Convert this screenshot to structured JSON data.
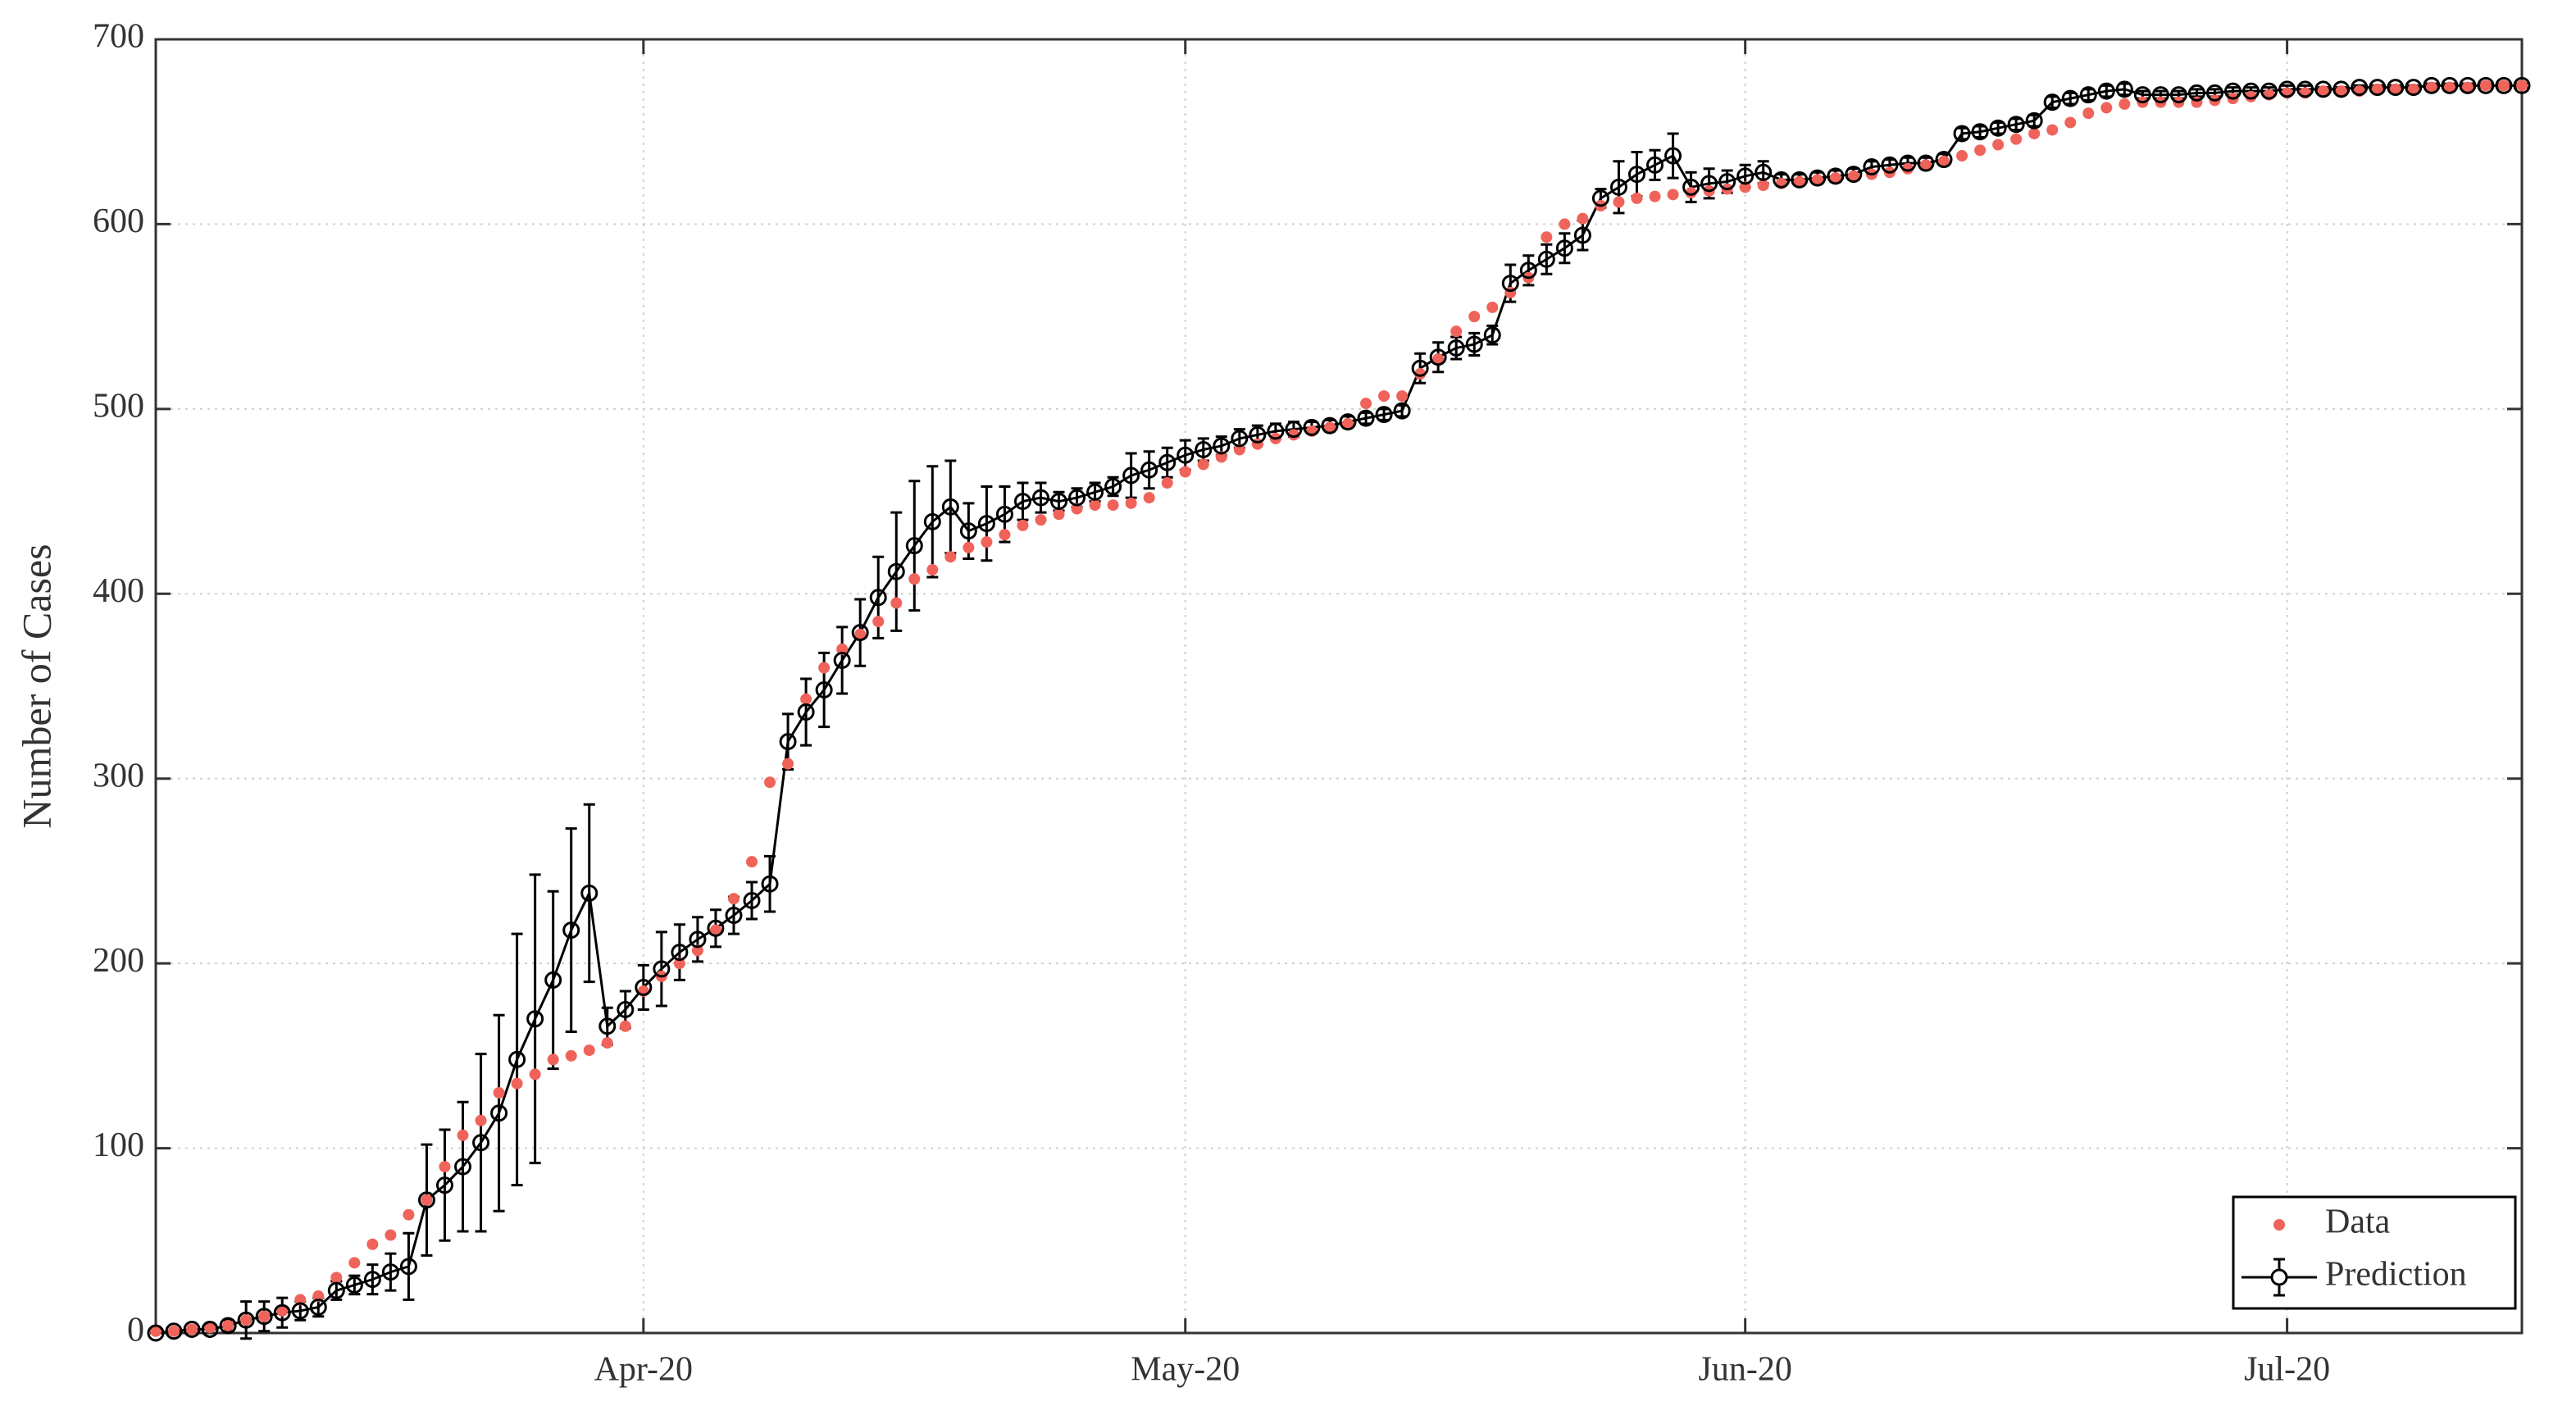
{
  "chart_data": {
    "type": "line",
    "y_label": "Number of Cases",
    "x": [
      0,
      1,
      2,
      3,
      4,
      5,
      6,
      7,
      8,
      9,
      10,
      11,
      12,
      13,
      14,
      15,
      16,
      17,
      18,
      19,
      20,
      21,
      22,
      23,
      24,
      25,
      26,
      27,
      28,
      29,
      30,
      31,
      32,
      33,
      34,
      35,
      36,
      37,
      38,
      39,
      40,
      41,
      42,
      43,
      44,
      45,
      46,
      47,
      48,
      49,
      50,
      51,
      52,
      53,
      54,
      55,
      56,
      57,
      58,
      59,
      60,
      61,
      62,
      63,
      64,
      65,
      66,
      67,
      68,
      69,
      70,
      71,
      72,
      73,
      74,
      75,
      76,
      77,
      78,
      79,
      80,
      81,
      82,
      83,
      84,
      85,
      86,
      87,
      88,
      89,
      90,
      91,
      92,
      93,
      94,
      95,
      96,
      97,
      98,
      99,
      100,
      101,
      102,
      103,
      104,
      105,
      106,
      107,
      108,
      109,
      110,
      111,
      112,
      113,
      114,
      115,
      116,
      117,
      118,
      119,
      120,
      121,
      122,
      123,
      124,
      125,
      126,
      127,
      128,
      129,
      130,
      131
    ],
    "xlim": [
      0,
      131
    ],
    "xticks": [
      {
        "value": 27,
        "label": "Apr-20"
      },
      {
        "value": 57,
        "label": "May-20"
      },
      {
        "value": 88,
        "label": "Jun-20"
      },
      {
        "value": 118,
        "label": "Jul-20"
      }
    ],
    "ylim": [
      0,
      700
    ],
    "yticks": [
      0,
      100,
      200,
      300,
      400,
      500,
      600,
      700
    ],
    "grid": true,
    "legend": "lower right",
    "series": [
      {
        "name": "Data",
        "color": "#f0635a",
        "marker": "dot",
        "values": [
          1,
          1,
          2,
          3,
          4,
          7,
          9,
          12,
          18,
          20,
          30,
          38,
          48,
          53,
          64,
          72,
          90,
          107,
          115,
          130,
          135,
          140,
          148,
          150,
          153,
          157,
          166,
          185,
          193,
          200,
          207,
          218,
          235,
          255,
          298,
          308,
          343,
          360,
          370,
          378,
          385,
          395,
          408,
          413,
          420,
          425,
          428,
          432,
          437,
          440,
          443,
          446,
          448,
          448,
          449,
          452,
          460,
          466,
          470,
          474,
          478,
          481,
          484,
          486,
          488,
          490,
          492,
          503,
          507,
          507,
          519,
          527,
          542,
          550,
          555,
          563,
          571,
          593,
          600,
          603,
          610,
          612,
          614,
          615,
          616,
          617,
          618,
          619,
          620,
          621,
          622,
          623,
          624,
          625,
          626,
          627,
          628,
          630,
          632,
          634,
          637,
          640,
          643,
          646,
          649,
          651,
          655,
          660,
          663,
          665,
          666,
          666,
          666,
          666,
          667,
          668,
          669,
          670,
          671,
          671,
          672,
          672,
          672,
          673,
          673,
          673,
          674,
          674,
          674,
          675,
          675,
          675
        ]
      },
      {
        "name": "Prediction",
        "color": "#000000",
        "marker": "circle",
        "values": [
          0,
          1,
          2,
          2,
          4,
          7,
          9,
          11,
          12,
          14,
          23,
          26,
          29,
          33,
          36,
          72,
          80,
          90,
          103,
          119,
          148,
          170,
          191,
          218,
          238,
          166,
          175,
          187,
          197,
          206,
          213,
          219,
          226,
          234,
          243,
          320,
          336,
          348,
          364,
          379,
          398,
          412,
          426,
          439,
          447,
          434,
          438,
          443,
          450,
          452,
          450,
          452,
          455,
          458,
          464,
          467,
          471,
          475,
          478,
          480,
          484,
          486,
          488,
          489,
          490,
          491,
          493,
          495,
          497,
          499,
          522,
          528,
          533,
          535,
          540,
          568,
          575,
          581,
          587,
          594,
          614,
          620,
          627,
          632,
          637,
          620,
          622,
          623,
          626,
          628,
          624,
          624,
          625,
          626,
          627,
          631,
          632,
          633,
          633,
          635,
          649,
          650,
          652,
          654,
          656,
          666,
          668,
          670,
          672,
          673,
          670,
          670,
          670,
          671,
          671,
          672,
          672,
          672,
          673,
          673,
          673,
          673,
          674,
          674,
          674,
          674,
          675,
          675,
          675,
          675,
          675,
          675
        ],
        "errors": [
          0,
          0,
          0,
          0,
          3,
          10,
          8,
          8,
          5,
          5,
          5,
          5,
          8,
          10,
          18,
          30,
          30,
          35,
          48,
          53,
          68,
          78,
          48,
          55,
          48,
          10,
          10,
          12,
          20,
          15,
          12,
          10,
          10,
          10,
          15,
          15,
          18,
          20,
          18,
          18,
          22,
          32,
          35,
          30,
          25,
          15,
          20,
          15,
          10,
          8,
          5,
          5,
          5,
          5,
          12,
          10,
          8,
          8,
          6,
          5,
          5,
          5,
          4,
          4,
          3,
          3,
          3,
          3,
          3,
          3,
          8,
          8,
          6,
          6,
          5,
          10,
          8,
          8,
          8,
          8,
          5,
          14,
          12,
          8,
          12,
          8,
          8,
          6,
          6,
          6,
          3,
          3,
          3,
          3,
          3,
          3,
          3,
          3,
          3,
          3,
          3,
          3,
          3,
          3,
          3,
          3,
          3,
          3,
          3,
          3,
          2,
          2,
          2,
          2,
          2,
          2,
          2,
          2,
          2,
          2,
          1,
          1,
          1,
          1,
          1,
          1,
          1,
          1,
          1,
          1,
          1,
          1
        ]
      }
    ]
  }
}
